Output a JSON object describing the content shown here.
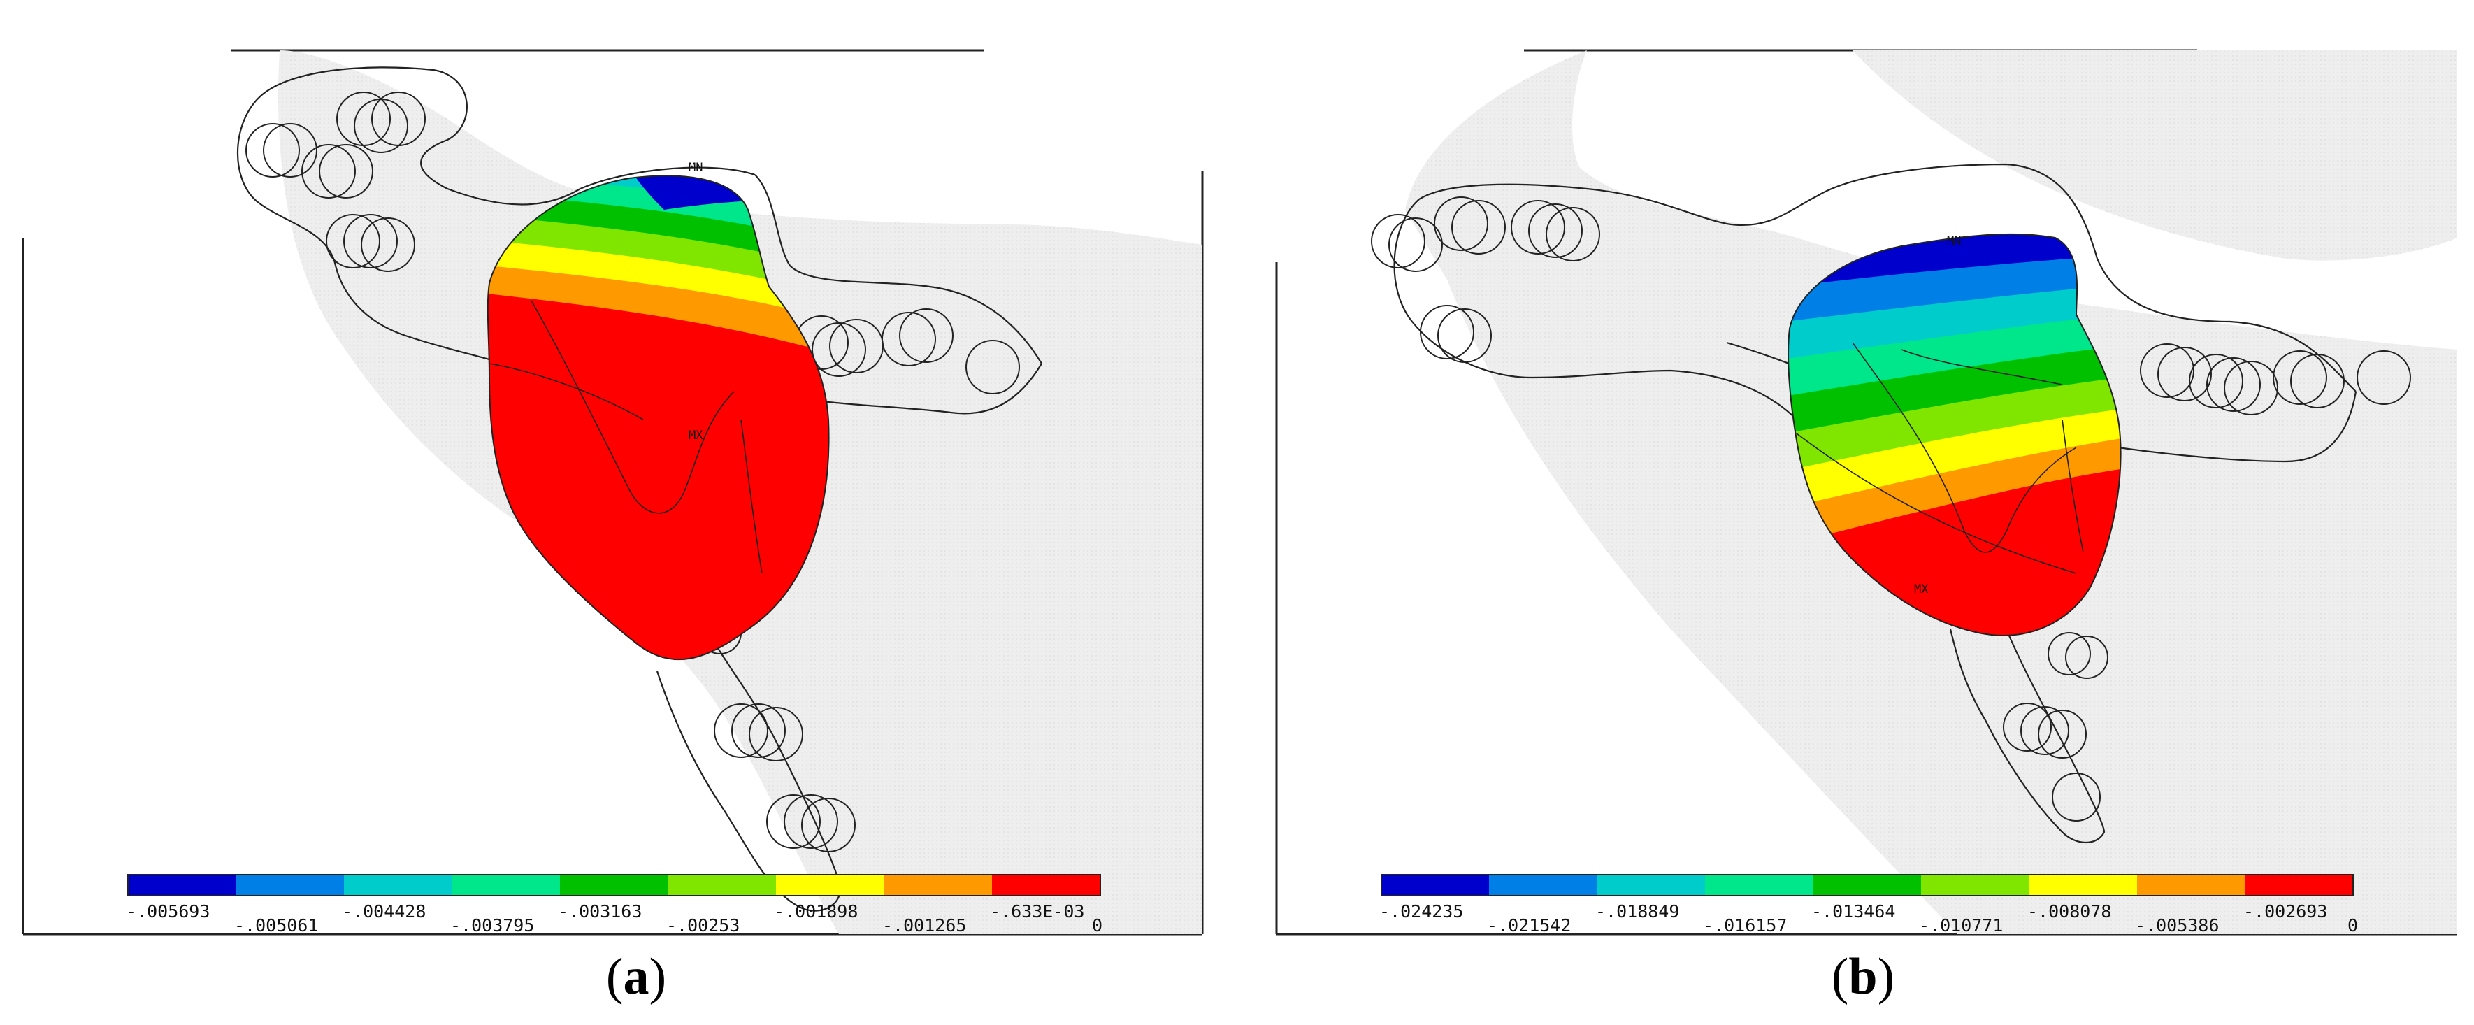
{
  "panels": [
    {
      "id": "a",
      "caption_letter": "a",
      "min_label": "MN",
      "max_label": "MX",
      "colorbar_labels": [
        "-.005693",
        "-.005061",
        "-.004428",
        "-.003795",
        "-.003163",
        "-.00253",
        "-.001898",
        "-.001265",
        "-.633E-03",
        "0"
      ]
    },
    {
      "id": "b",
      "caption_letter": "b",
      "min_label": "MN",
      "max_label": "MX",
      "colorbar_labels": [
        "-.024235",
        "-.021542",
        "-.018849",
        "-.016157",
        "-.013464",
        "-.010771",
        "-.008078",
        "-.005386",
        "-.002693",
        "0"
      ]
    }
  ],
  "colors": {
    "contour_bands": [
      "#0000cc",
      "#0080e6",
      "#00cccc",
      "#00e68a",
      "#00c000",
      "#80e600",
      "#ffff00",
      "#ff9900",
      "#ff0000"
    ],
    "background_bone": "#eeeeee",
    "outline": "#222222"
  }
}
